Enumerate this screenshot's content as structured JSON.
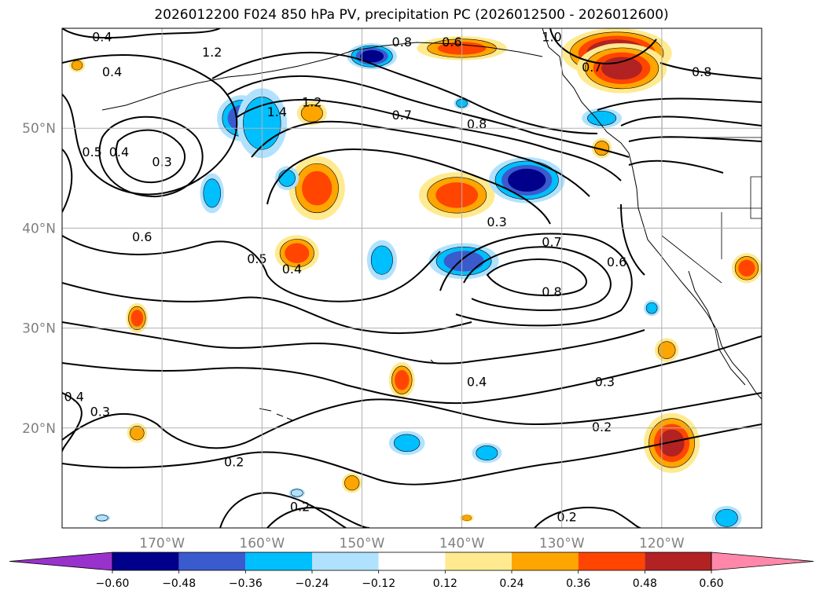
{
  "title": "2026012200 F024 850 hPa PV, precipitation PC (2026012500 - 2026012600)",
  "map": {
    "projection": "cylindrical",
    "lon_range": [
      -180,
      -110
    ],
    "lat_range": [
      10,
      60
    ],
    "lat_ticks": [
      {
        "value": 50,
        "label": "50°N"
      },
      {
        "value": 40,
        "label": "40°N"
      },
      {
        "value": 30,
        "label": "30°N"
      },
      {
        "value": 20,
        "label": "20°N"
      }
    ],
    "lon_ticks": [
      {
        "value": -170,
        "label": "170°W"
      },
      {
        "value": -160,
        "label": "160°W"
      },
      {
        "value": -150,
        "label": "150°W"
      },
      {
        "value": -140,
        "label": "140°W"
      },
      {
        "value": -130,
        "label": "130°W"
      },
      {
        "value": -120,
        "label": "120°W"
      }
    ],
    "grid": true
  },
  "contour_labels": [
    {
      "text": "0.4",
      "lon": -176,
      "lat": 59
    },
    {
      "text": "0.4",
      "lon": -175,
      "lat": 55.5
    },
    {
      "text": "0.8",
      "lon": -146,
      "lat": 58.5
    },
    {
      "text": "0.6",
      "lon": -141,
      "lat": 58.5
    },
    {
      "text": "1.0",
      "lon": -131,
      "lat": 59
    },
    {
      "text": "1.2",
      "lon": -165,
      "lat": 57.5
    },
    {
      "text": "0.7",
      "lon": -127,
      "lat": 56
    },
    {
      "text": "0.8",
      "lon": -116,
      "lat": 55.5
    },
    {
      "text": "1.4",
      "lon": -158.5,
      "lat": 51.5
    },
    {
      "text": "1.2",
      "lon": -155,
      "lat": 52.5
    },
    {
      "text": "0.7",
      "lon": -146,
      "lat": 51.2
    },
    {
      "text": "0.8",
      "lon": -138.5,
      "lat": 50.3
    },
    {
      "text": "0.5",
      "lon": -177,
      "lat": 47.5
    },
    {
      "text": "0.4",
      "lon": -174.3,
      "lat": 47.5
    },
    {
      "text": "0.3",
      "lon": -170,
      "lat": 46.5
    },
    {
      "text": "0.6",
      "lon": -172,
      "lat": 39
    },
    {
      "text": "0.3",
      "lon": -136.5,
      "lat": 40.5
    },
    {
      "text": "0.7",
      "lon": -131,
      "lat": 38.5
    },
    {
      "text": "0.6",
      "lon": -124.5,
      "lat": 36.5
    },
    {
      "text": "0.5",
      "lon": -160.5,
      "lat": 36.8
    },
    {
      "text": "0.4",
      "lon": -157,
      "lat": 35.8
    },
    {
      "text": "0.8",
      "lon": -131,
      "lat": 33.5
    },
    {
      "text": "0.4",
      "lon": -178.8,
      "lat": 23
    },
    {
      "text": "0.3",
      "lon": -176.2,
      "lat": 21.5
    },
    {
      "text": "0.4",
      "lon": -138.5,
      "lat": 24.5
    },
    {
      "text": "0.3",
      "lon": -125.7,
      "lat": 24.5
    },
    {
      "text": "0.2",
      "lon": -126,
      "lat": 20
    },
    {
      "text": "0.2",
      "lon": -162.8,
      "lat": 16.5
    },
    {
      "text": "0.2",
      "lon": -156.2,
      "lat": 12
    },
    {
      "text": "0.2",
      "lon": -129.5,
      "lat": 11
    }
  ],
  "precip_anomalies": [
    {
      "lon": -124.5,
      "lat": 57.5,
      "value": 0.62,
      "rlon": 5.5,
      "rlat": 2.5
    },
    {
      "lon": -124,
      "lat": 56,
      "value": 0.5,
      "rlon": 4.5,
      "rlat": 2.5
    },
    {
      "lon": -140,
      "lat": 58,
      "value": 0.38,
      "rlon": 4.5,
      "rlat": 1.2
    },
    {
      "lon": -154.5,
      "lat": 44,
      "value": 0.38,
      "rlon": 2.8,
      "rlat": 3.2
    },
    {
      "lon": -140.5,
      "lat": 43.3,
      "value": 0.4,
      "rlon": 3.8,
      "rlat": 2.3
    },
    {
      "lon": -156.5,
      "lat": 37.5,
      "value": 0.4,
      "rlon": 2.2,
      "rlat": 1.8
    },
    {
      "lon": -155,
      "lat": 51.5,
      "value": 0.3,
      "rlon": 1.5,
      "rlat": 1.2
    },
    {
      "lon": -126,
      "lat": 48,
      "value": 0.3,
      "rlon": 1.0,
      "rlat": 1.0
    },
    {
      "lon": -172.5,
      "lat": 31,
      "value": 0.4,
      "rlon": 1.1,
      "rlat": 1.5
    },
    {
      "lon": -146,
      "lat": 24.8,
      "value": 0.4,
      "rlon": 1.3,
      "rlat": 1.8
    },
    {
      "lon": -119,
      "lat": 18.5,
      "value": 0.5,
      "rlon": 2.8,
      "rlat": 3.0
    },
    {
      "lon": -119.5,
      "lat": 27.8,
      "value": 0.3,
      "rlon": 1.2,
      "rlat": 1.2
    },
    {
      "lon": -111.5,
      "lat": 36,
      "value": 0.4,
      "rlon": 1.5,
      "rlat": 1.5
    },
    {
      "lon": -178.5,
      "lat": 56.3,
      "value": 0.25,
      "rlon": 0.8,
      "rlat": 0.7
    },
    {
      "lon": -172.5,
      "lat": 19.5,
      "value": 0.28,
      "rlon": 1.0,
      "rlat": 1.0
    },
    {
      "lon": -151,
      "lat": 14.5,
      "value": 0.32,
      "rlon": 1.0,
      "rlat": 1.0
    },
    {
      "lon": -139.5,
      "lat": 11,
      "value": 0.24,
      "rlon": 0.7,
      "rlat": 0.4
    },
    {
      "lon": -133.5,
      "lat": 44.8,
      "value": -0.55,
      "rlon": 3.8,
      "rlat": 2.3
    },
    {
      "lon": -162,
      "lat": 51,
      "value": -0.42,
      "rlon": 2.5,
      "rlat": 2.3
    },
    {
      "lon": -160,
      "lat": 50.5,
      "value": -0.35,
      "rlon": 2.5,
      "rlat": 3.5
    },
    {
      "lon": -139.8,
      "lat": 36.7,
      "value": -0.42,
      "rlon": 3.5,
      "rlat": 1.8
    },
    {
      "lon": -148,
      "lat": 36.8,
      "value": -0.3,
      "rlon": 1.5,
      "rlat": 2.0
    },
    {
      "lon": -165,
      "lat": 43.5,
      "value": -0.3,
      "rlon": 1.2,
      "rlat": 2.0
    },
    {
      "lon": -157.5,
      "lat": 45,
      "value": -0.27,
      "rlon": 1.2,
      "rlat": 1.2
    },
    {
      "lon": -149,
      "lat": 57.2,
      "value": -0.52,
      "rlon": 2.5,
      "rlat": 1.3
    },
    {
      "lon": -140,
      "lat": 52.5,
      "value": -0.27,
      "rlon": 0.8,
      "rlat": 0.6
    },
    {
      "lon": -126,
      "lat": 51,
      "value": -0.3,
      "rlon": 2.0,
      "rlat": 1.0
    },
    {
      "lon": -145.5,
      "lat": 18.5,
      "value": -0.3,
      "rlon": 1.8,
      "rlat": 1.2
    },
    {
      "lon": -137.5,
      "lat": 17.5,
      "value": -0.3,
      "rlon": 1.5,
      "rlat": 1.0
    },
    {
      "lon": -113.5,
      "lat": 11,
      "value": -0.32,
      "rlon": 1.5,
      "rlat": 1.2
    },
    {
      "lon": -121,
      "lat": 32,
      "value": -0.27,
      "rlon": 0.8,
      "rlat": 0.8
    },
    {
      "lon": -156.5,
      "lat": 13.5,
      "value": -0.2,
      "rlon": 0.8,
      "rlat": 0.5
    },
    {
      "lon": -176,
      "lat": 11,
      "value": -0.2,
      "rlon": 0.8,
      "rlat": 0.4
    }
  ],
  "colorbar": {
    "levels": [
      -0.72,
      -0.6,
      -0.48,
      -0.36,
      -0.24,
      -0.12,
      0.12,
      0.24,
      0.36,
      0.48,
      0.6,
      0.72
    ],
    "colors": [
      "#9932cc",
      "#00008b",
      "#3a5bcd",
      "#00bfff",
      "#b0e2ff",
      "#ffffff",
      "#ffea8f",
      "#ffa500",
      "#ff4500",
      "#b22222",
      "#ff88aa"
    ],
    "tick_labels": [
      "−0.60",
      "−0.48",
      "−0.36",
      "−0.24",
      "−0.12",
      "0.12",
      "0.24",
      "0.36",
      "0.48",
      "0.60"
    ]
  }
}
